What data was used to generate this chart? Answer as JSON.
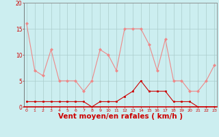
{
  "hours": [
    0,
    1,
    2,
    3,
    4,
    5,
    6,
    7,
    8,
    9,
    10,
    11,
    12,
    13,
    14,
    15,
    16,
    17,
    18,
    19,
    20,
    21,
    22,
    23
  ],
  "wind_avg": [
    1,
    1,
    1,
    1,
    1,
    1,
    1,
    1,
    0,
    1,
    1,
    1,
    2,
    3,
    5,
    3,
    3,
    3,
    1,
    1,
    1,
    0,
    0,
    0
  ],
  "wind_gust": [
    16,
    7,
    6,
    11,
    5,
    5,
    5,
    3,
    5,
    11,
    10,
    7,
    15,
    15,
    15,
    12,
    7,
    13,
    5,
    5,
    3,
    3,
    5,
    8
  ],
  "bg_color": "#cceef0",
  "grid_color": "#aacccc",
  "line_avg_color": "#cc0000",
  "line_gust_color": "#ee8888",
  "xlabel": "Vent moyen/en rafales ( km/h )",
  "xlabel_color": "#cc0000",
  "tick_color": "#cc0000",
  "ylim": [
    0,
    20
  ],
  "yticks": [
    0,
    5,
    10,
    15,
    20
  ],
  "spine_color": "#888888",
  "xlabel_fontsize": 7.5
}
